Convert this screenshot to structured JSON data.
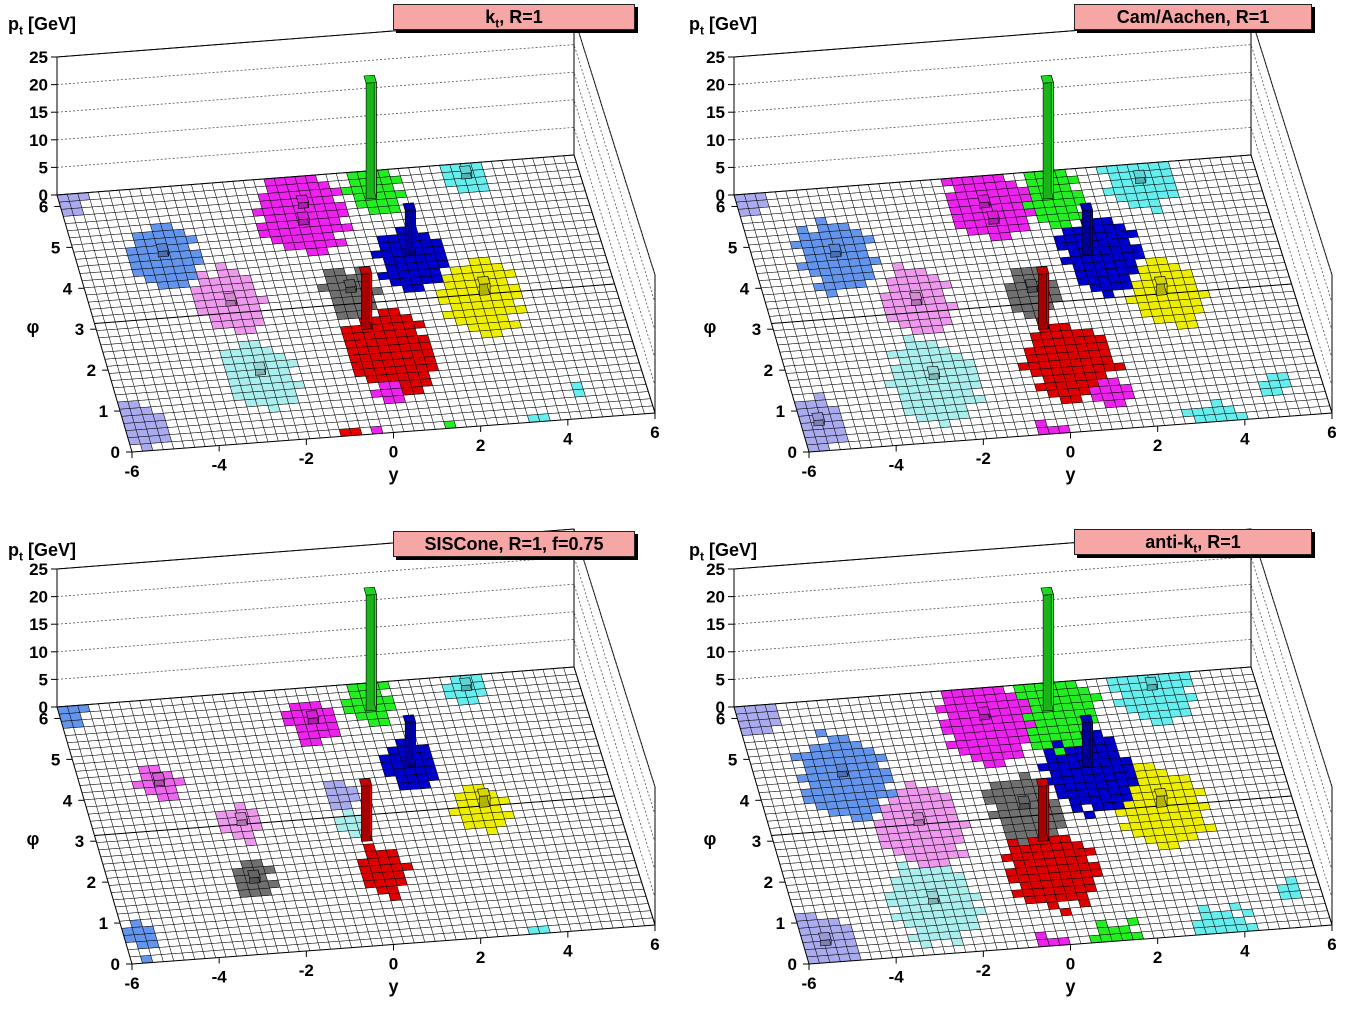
{
  "chart_data": [
    {
      "type": "lego3d",
      "title_main": "k",
      "title_sub": "t",
      "title_rest": ", R=1",
      "zlabel_main": "p",
      "zlabel_sub": "t",
      "zlabel_rest": " [GeV]",
      "xlabel": "y",
      "ylabel": "φ",
      "xlim": [
        -6,
        6
      ],
      "ylim": [
        0,
        6.28
      ],
      "zlim": [
        0,
        25
      ],
      "xticks": [
        "-6",
        "-4",
        "-2",
        "0",
        "2",
        "4",
        "6"
      ],
      "yticks": [
        "0",
        "1",
        "2",
        "3",
        "4",
        "5",
        "6"
      ],
      "zticks": [
        "0",
        "5",
        "10",
        "15",
        "20",
        "25"
      ],
      "jets": [
        {
          "color": "#aaaaee",
          "y": -5.7,
          "phi": 6.1,
          "r": 0.3
        },
        {
          "color": "#aaaaee",
          "y": -5.6,
          "phi": 0.6,
          "r": 0.55
        },
        {
          "color": "#6495ed",
          "y": -4.0,
          "phi": 4.6,
          "r": 0.8
        },
        {
          "color": "#ee99ee",
          "y": -2.8,
          "phi": 3.4,
          "r": 0.8
        },
        {
          "color": "#aaeeee",
          "y": -2.6,
          "phi": 1.6,
          "r": 0.8
        },
        {
          "color": "#ee22ee",
          "y": -0.6,
          "phi": 5.4,
          "r": 1.0
        },
        {
          "color": "#ee22ee",
          "y": 0.2,
          "phi": 0.9,
          "r": 0.3
        },
        {
          "color": "#ee0000",
          "y": -0.9,
          "phi": 6.2,
          "r": 0.3
        },
        {
          "color": "#22ee22",
          "y": 1.2,
          "phi": 5.8,
          "r": 0.6
        },
        {
          "color": "#0000cc",
          "y": 1.6,
          "phi": 4.1,
          "r": 0.75
        },
        {
          "color": "#707070",
          "y": 0.0,
          "phi": 3.4,
          "r": 0.6
        },
        {
          "color": "#dd0000",
          "y": 0.5,
          "phi": 1.9,
          "r": 1.0
        },
        {
          "color": "#eeee00",
          "y": 2.9,
          "phi": 3.1,
          "r": 0.9
        },
        {
          "color": "#66eeee",
          "y": 3.4,
          "phi": 6.0,
          "r": 0.5
        },
        {
          "color": "#66eeee",
          "y": 4.4,
          "phi": 0.7,
          "r": 0.2
        }
      ],
      "towers": [
        {
          "color": "#22ee22",
          "y": 1.1,
          "phi": 5.7,
          "pt": 21
        },
        {
          "color": "#0000cc",
          "y": 1.6,
          "phi": 4.3,
          "pt": 8
        },
        {
          "color": "#dd0000",
          "y": 0.1,
          "phi": 2.6,
          "pt": 10
        },
        {
          "color": "#eeee00",
          "y": 3.0,
          "phi": 3.2,
          "pt": 2
        },
        {
          "color": "#ee22ee",
          "y": -0.5,
          "phi": 5.6,
          "pt": 1
        },
        {
          "color": "#ee22ee",
          "y": -0.6,
          "phi": 5.2,
          "pt": 1
        },
        {
          "color": "#707070",
          "y": 0.0,
          "phi": 3.5,
          "pt": 1
        },
        {
          "color": "#6495ed",
          "y": -4.0,
          "phi": 4.7,
          "pt": 1
        },
        {
          "color": "#ee99ee",
          "y": -2.8,
          "phi": 3.4,
          "pt": 1
        },
        {
          "color": "#aaeeee",
          "y": -2.6,
          "phi": 1.7,
          "pt": 1
        },
        {
          "color": "#66eeee",
          "y": 3.4,
          "phi": 6.0,
          "pt": 1
        }
      ]
    },
    {
      "type": "lego3d",
      "title_main": "Cam/Aachen, R=1",
      "title_sub": "",
      "title_rest": "",
      "zlabel_main": "p",
      "zlabel_sub": "t",
      "zlabel_rest": " [GeV]",
      "xlabel": "y",
      "ylabel": "φ",
      "xlim": [
        -6,
        6
      ],
      "ylim": [
        0,
        6.28
      ],
      "zlim": [
        0,
        25
      ],
      "xticks": [
        "-6",
        "-4",
        "-2",
        "0",
        "2",
        "4",
        "6"
      ],
      "yticks": [
        "0",
        "1",
        "2",
        "3",
        "4",
        "5",
        "6"
      ],
      "zticks": [
        "0",
        "5",
        "10",
        "15",
        "20",
        "25"
      ],
      "jets": [
        {
          "color": "#aaaaee",
          "y": -5.7,
          "phi": 6.1,
          "r": 0.35
        },
        {
          "color": "#aaaaee",
          "y": -5.6,
          "phi": 0.7,
          "r": 0.6
        },
        {
          "color": "#6495ed",
          "y": -4.1,
          "phi": 4.6,
          "r": 0.85
        },
        {
          "color": "#ee99ee",
          "y": -2.6,
          "phi": 3.4,
          "r": 0.8
        },
        {
          "color": "#aaeeee",
          "y": -2.7,
          "phi": 1.5,
          "r": 1.0
        },
        {
          "color": "#ee22ee",
          "y": -0.3,
          "phi": 5.6,
          "r": 0.9
        },
        {
          "color": "#ee22ee",
          "y": 1.2,
          "phi": 0.8,
          "r": 0.4
        },
        {
          "color": "#22ee22",
          "y": 1.2,
          "phi": 5.6,
          "r": 0.7
        },
        {
          "color": "#0000cc",
          "y": 1.9,
          "phi": 4.2,
          "r": 0.9
        },
        {
          "color": "#707070",
          "y": 0.1,
          "phi": 3.4,
          "r": 0.6
        },
        {
          "color": "#dd0000",
          "y": 0.5,
          "phi": 1.7,
          "r": 1.0
        },
        {
          "color": "#eeee00",
          "y": 3.1,
          "phi": 3.1,
          "r": 0.8
        },
        {
          "color": "#66eeee",
          "y": 3.3,
          "phi": 5.9,
          "r": 0.8
        },
        {
          "color": "#66eeee",
          "y": 4.9,
          "phi": 0.8,
          "r": 0.3
        }
      ],
      "towers": [
        {
          "color": "#22ee22",
          "y": 1.1,
          "phi": 5.7,
          "pt": 21
        },
        {
          "color": "#0000cc",
          "y": 1.6,
          "phi": 4.3,
          "pt": 8
        },
        {
          "color": "#dd0000",
          "y": 0.1,
          "phi": 2.6,
          "pt": 10
        },
        {
          "color": "#eeee00",
          "y": 3.0,
          "phi": 3.2,
          "pt": 2
        },
        {
          "color": "#ee22ee",
          "y": -0.4,
          "phi": 5.6,
          "pt": 1
        },
        {
          "color": "#ee22ee",
          "y": -0.3,
          "phi": 5.2,
          "pt": 1
        },
        {
          "color": "#707070",
          "y": 0.1,
          "phi": 3.5,
          "pt": 1
        },
        {
          "color": "#6495ed",
          "y": -4.1,
          "phi": 4.7,
          "pt": 1
        },
        {
          "color": "#ee99ee",
          "y": -2.6,
          "phi": 3.4,
          "pt": 1
        },
        {
          "color": "#aaeeee",
          "y": -2.7,
          "phi": 1.6,
          "pt": 1
        },
        {
          "color": "#66eeee",
          "y": 3.3,
          "phi": 5.9,
          "pt": 1
        },
        {
          "color": "#aaaaee",
          "y": -5.6,
          "phi": 0.7,
          "pt": 1
        }
      ]
    },
    {
      "type": "lego3d",
      "title_main": "SISCone, R=1, f=0.75",
      "title_sub": "",
      "title_rest": "",
      "zlabel_main": "p",
      "zlabel_sub": "t",
      "zlabel_rest": " [GeV]",
      "xlabel": "y",
      "ylabel": "φ",
      "xlim": [
        -6,
        6
      ],
      "ylim": [
        0,
        6.28
      ],
      "zlim": [
        0,
        25
      ],
      "xticks": [
        "-6",
        "-4",
        "-2",
        "0",
        "2",
        "4",
        "6"
      ],
      "yticks": [
        "0",
        "1",
        "2",
        "3",
        "4",
        "5",
        "6"
      ],
      "zticks": [
        "0",
        "5",
        "10",
        "15",
        "20",
        "25"
      ],
      "jets": [
        {
          "color": "#6495ed",
          "y": -5.7,
          "phi": 6.1,
          "r": 0.3
        },
        {
          "color": "#6495ed",
          "y": -5.6,
          "phi": 0.6,
          "r": 0.35
        },
        {
          "color": "#ee66ee",
          "y": -4.2,
          "phi": 4.3,
          "r": 0.45
        },
        {
          "color": "#ee99ee",
          "y": -2.6,
          "phi": 3.2,
          "r": 0.45
        },
        {
          "color": "#707070",
          "y": -2.7,
          "phi": 1.8,
          "r": 0.45
        },
        {
          "color": "#ee22ee",
          "y": -0.3,
          "phi": 5.5,
          "r": 0.55
        },
        {
          "color": "#22ee22",
          "y": 1.1,
          "phi": 5.8,
          "r": 0.55
        },
        {
          "color": "#0000cc",
          "y": 1.6,
          "phi": 4.2,
          "r": 0.6
        },
        {
          "color": "#aaaaee",
          "y": -0.2,
          "phi": 3.7,
          "r": 0.35
        },
        {
          "color": "#aaeeee",
          "y": -0.1,
          "phi": 2.9,
          "r": 0.35
        },
        {
          "color": "#dd0000",
          "y": 0.3,
          "phi": 1.8,
          "r": 0.6
        },
        {
          "color": "#eeee00",
          "y": 2.9,
          "phi": 3.1,
          "r": 0.6
        },
        {
          "color": "#66eeee",
          "y": 3.4,
          "phi": 6.0,
          "r": 0.45
        }
      ],
      "towers": [
        {
          "color": "#22ee22",
          "y": 1.1,
          "phi": 5.7,
          "pt": 21
        },
        {
          "color": "#0000cc",
          "y": 1.6,
          "phi": 4.3,
          "pt": 8
        },
        {
          "color": "#dd0000",
          "y": 0.1,
          "phi": 2.6,
          "pt": 10
        },
        {
          "color": "#eeee00",
          "y": 3.0,
          "phi": 3.2,
          "pt": 2
        },
        {
          "color": "#ee22ee",
          "y": -0.3,
          "phi": 5.5,
          "pt": 1
        },
        {
          "color": "#707070",
          "y": -2.7,
          "phi": 1.8,
          "pt": 1
        },
        {
          "color": "#ee99ee",
          "y": -2.6,
          "phi": 3.2,
          "pt": 1
        },
        {
          "color": "#ee66ee",
          "y": -4.2,
          "phi": 4.3,
          "pt": 1
        },
        {
          "color": "#66eeee",
          "y": 3.4,
          "phi": 6.0,
          "pt": 1
        }
      ]
    },
    {
      "type": "lego3d",
      "title_main": "anti-k",
      "title_sub": "t",
      "title_rest": ", R=1",
      "zlabel_main": "p",
      "zlabel_sub": "t",
      "zlabel_rest": " [GeV]",
      "xlabel": "y",
      "ylabel": "φ",
      "xlim": [
        -6,
        6
      ],
      "ylim": [
        0,
        6.28
      ],
      "zlim": [
        0,
        25
      ],
      "xticks": [
        "-6",
        "-4",
        "-2",
        "0",
        "2",
        "4",
        "6"
      ],
      "yticks": [
        "0",
        "1",
        "2",
        "3",
        "4",
        "5",
        "6"
      ],
      "zticks": [
        "0",
        "5",
        "10",
        "15",
        "20",
        "25"
      ],
      "jets": [
        {
          "color": "#aaaaee",
          "y": -5.6,
          "phi": 6.1,
          "r": 0.6
        },
        {
          "color": "#aaaaee",
          "y": -5.5,
          "phi": 0.5,
          "r": 0.7
        },
        {
          "color": "#6495ed",
          "y": -4.0,
          "phi": 4.4,
          "r": 1.0
        },
        {
          "color": "#ee99ee",
          "y": -2.6,
          "phi": 3.1,
          "r": 1.0
        },
        {
          "color": "#aaeeee",
          "y": -2.8,
          "phi": 1.2,
          "r": 1.0
        },
        {
          "color": "#ee22ee",
          "y": -0.4,
          "phi": 5.5,
          "r": 1.0
        },
        {
          "color": "#22ee22",
          "y": 1.2,
          "phi": 5.7,
          "r": 1.0
        },
        {
          "color": "#0000cc",
          "y": 1.6,
          "phi": 4.1,
          "r": 1.0
        },
        {
          "color": "#707070",
          "y": -0.1,
          "phi": 3.3,
          "r": 0.8
        },
        {
          "color": "#dd0000",
          "y": 0.1,
          "phi": 1.9,
          "r": 1.0
        },
        {
          "color": "#eeee00",
          "y": 3.0,
          "phi": 3.1,
          "r": 1.0
        },
        {
          "color": "#66eeee",
          "y": 3.6,
          "phi": 6.0,
          "r": 0.9
        },
        {
          "color": "#66eeee",
          "y": 5.3,
          "phi": 0.9,
          "r": 0.3
        }
      ],
      "towers": [
        {
          "color": "#22ee22",
          "y": 1.1,
          "phi": 5.7,
          "pt": 21
        },
        {
          "color": "#0000cc",
          "y": 1.6,
          "phi": 4.3,
          "pt": 8
        },
        {
          "color": "#dd0000",
          "y": 0.1,
          "phi": 2.6,
          "pt": 10
        },
        {
          "color": "#eeee00",
          "y": 3.0,
          "phi": 3.2,
          "pt": 2
        },
        {
          "color": "#ee22ee",
          "y": -0.4,
          "phi": 5.6,
          "pt": 1
        },
        {
          "color": "#707070",
          "y": -0.1,
          "phi": 3.4,
          "pt": 1
        },
        {
          "color": "#6495ed",
          "y": -4.0,
          "phi": 4.5,
          "pt": 1
        },
        {
          "color": "#ee99ee",
          "y": -2.6,
          "phi": 3.2,
          "pt": 1
        },
        {
          "color": "#aaeeee",
          "y": -2.8,
          "phi": 1.3,
          "pt": 1
        },
        {
          "color": "#aaaaee",
          "y": -5.5,
          "phi": 0.5,
          "pt": 1
        },
        {
          "color": "#66eeee",
          "y": 3.6,
          "phi": 6.0,
          "pt": 1
        }
      ]
    }
  ]
}
